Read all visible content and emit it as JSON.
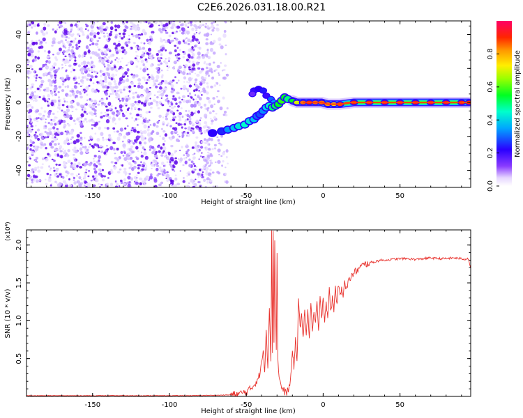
{
  "title": "C2E6.2026.031.18.00.R21",
  "chart_data": [
    {
      "type": "heatmap",
      "xlabel": "Height of straight line (km)",
      "ylabel": "Frequency (Hz)",
      "xlim": [
        -193,
        96
      ],
      "ylim": [
        -50,
        48
      ],
      "xticks": [
        -150,
        -100,
        -50,
        0,
        50
      ],
      "yticks": [
        -40,
        -20,
        0,
        20,
        40
      ],
      "colorbar": {
        "label": "Normalized spectral amplitude",
        "range": [
          0,
          1
        ],
        "ticks": [
          "0.0",
          "0.2",
          "0.4",
          "0.6",
          "0.8"
        ]
      },
      "noise_region": {
        "x": [
          -193,
          -62
        ],
        "y": [
          -50,
          48
        ]
      },
      "ridge": [
        {
          "x": -72,
          "y": -18,
          "a": 0.22
        },
        {
          "x": -66,
          "y": -17,
          "a": 0.25
        },
        {
          "x": -62,
          "y": -16,
          "a": 0.34
        },
        {
          "x": -58,
          "y": -15,
          "a": 0.38
        },
        {
          "x": -55,
          "y": -14,
          "a": 0.42
        },
        {
          "x": -51,
          "y": -13,
          "a": 0.45
        },
        {
          "x": -48,
          "y": -11,
          "a": 0.42
        },
        {
          "x": -45,
          "y": -10,
          "a": 0.38
        },
        {
          "x": -43,
          "y": -8,
          "a": 0.3
        },
        {
          "x": -41,
          "y": -7,
          "a": 0.28
        },
        {
          "x": -39,
          "y": -5,
          "a": 0.33
        },
        {
          "x": -37,
          "y": -3,
          "a": 0.4
        },
        {
          "x": -35,
          "y": -2,
          "a": 0.45
        },
        {
          "x": -33,
          "y": -3,
          "a": 0.5
        },
        {
          "x": -31,
          "y": -2,
          "a": 0.52
        },
        {
          "x": -29,
          "y": -1,
          "a": 0.55
        },
        {
          "x": -27,
          "y": 1,
          "a": 0.58
        },
        {
          "x": -25,
          "y": 3,
          "a": 0.55
        },
        {
          "x": -23,
          "y": 2,
          "a": 0.5
        },
        {
          "x": -20,
          "y": 1,
          "a": 0.55
        },
        {
          "x": -17,
          "y": 0,
          "a": 0.7
        },
        {
          "x": -13,
          "y": 0,
          "a": 0.85
        },
        {
          "x": -9,
          "y": 0,
          "a": 0.9
        },
        {
          "x": -5,
          "y": 0,
          "a": 0.85
        },
        {
          "x": -1,
          "y": 0,
          "a": 0.85
        },
        {
          "x": 3,
          "y": -1,
          "a": 0.82
        },
        {
          "x": 7,
          "y": -1,
          "a": 0.75
        },
        {
          "x": 11,
          "y": -1,
          "a": 0.88
        },
        {
          "x": 20,
          "y": 0,
          "a": 0.9
        },
        {
          "x": 30,
          "y": 0,
          "a": 0.92
        },
        {
          "x": 40,
          "y": 0,
          "a": 0.93
        },
        {
          "x": 50,
          "y": 0,
          "a": 0.93
        },
        {
          "x": 60,
          "y": 0,
          "a": 0.93
        },
        {
          "x": 70,
          "y": 0,
          "a": 0.93
        },
        {
          "x": 80,
          "y": 0,
          "a": 0.93
        },
        {
          "x": 90,
          "y": 0,
          "a": 0.92
        },
        {
          "x": 95,
          "y": 0,
          "a": 0.9
        }
      ],
      "side_lobes": [
        {
          "x": -45,
          "y": 7,
          "a": 0.2
        },
        {
          "x": -42,
          "y": 8,
          "a": 0.22
        },
        {
          "x": -39,
          "y": 7,
          "a": 0.24
        },
        {
          "x": -37,
          "y": 4,
          "a": 0.2
        },
        {
          "x": -34,
          "y": 2,
          "a": 0.3
        },
        {
          "x": -32,
          "y": 0,
          "a": 0.35
        },
        {
          "x": -46,
          "y": 5,
          "a": 0.15
        }
      ]
    },
    {
      "type": "line",
      "xlabel": "Height of straight line (km)",
      "ylabel": "SNR (10 * v/v)",
      "yunit": "(x10⁴)",
      "xlim": [
        -193,
        96
      ],
      "ylim": [
        0,
        2.2
      ],
      "xticks": [
        -150,
        -100,
        -50,
        0,
        50
      ],
      "yticks": [
        0.5,
        1.0,
        1.5,
        2.0
      ],
      "series": [
        {
          "color": "#e8312c",
          "x": [
            -193,
            -90,
            -70,
            -60,
            -55,
            -50,
            -47,
            -44,
            -41,
            -39,
            -38,
            -37,
            -36,
            -35,
            -34,
            -33.5,
            -33,
            -32.5,
            -32,
            -31.5,
            -31,
            -30.5,
            -30,
            -29.5,
            -29,
            -28,
            -27,
            -26,
            -25,
            -24,
            -23,
            -22,
            -21,
            -20,
            -19,
            -18,
            -17,
            -16,
            -15,
            -14,
            -13,
            -12,
            -11,
            -10,
            -9,
            -8,
            -7,
            -6,
            -5,
            -4,
            -3,
            -2,
            -1,
            0,
            1,
            2,
            3,
            4,
            5,
            6,
            7,
            8,
            9,
            10,
            11,
            12,
            13,
            14,
            15,
            17,
            19,
            21,
            23,
            25,
            28,
            31,
            34,
            37,
            40,
            45,
            50,
            55,
            60,
            65,
            70,
            75,
            80,
            85,
            90,
            92,
            94,
            95,
            96
          ],
          "y": [
            0.01,
            0.01,
            0.015,
            0.02,
            0.03,
            0.06,
            0.1,
            0.18,
            0.3,
            0.6,
            0.35,
            0.9,
            0.4,
            1.2,
            0.5,
            2.15,
            0.6,
            2.2,
            0.7,
            2.1,
            1.2,
            0.6,
            1.9,
            0.5,
            0.35,
            0.18,
            0.12,
            0.08,
            0.06,
            0.05,
            0.08,
            0.12,
            0.25,
            0.6,
            0.4,
            0.75,
            0.45,
            1.3,
            0.9,
            1.05,
            0.75,
            1.15,
            0.85,
            1.1,
            0.8,
            1.2,
            0.9,
            1.1,
            0.95,
            1.25,
            0.85,
            1.3,
            1.0,
            1.35,
            1.0,
            1.25,
            1.05,
            1.4,
            1.1,
            1.3,
            1.15,
            1.45,
            1.2,
            1.5,
            1.3,
            1.45,
            1.35,
            1.55,
            1.4,
            1.55,
            1.6,
            1.65,
            1.68,
            1.72,
            1.75,
            1.77,
            1.78,
            1.8,
            1.8,
            1.81,
            1.82,
            1.82,
            1.81,
            1.82,
            1.83,
            1.82,
            1.82,
            1.83,
            1.82,
            1.81,
            1.83,
            1.78,
            1.7
          ]
        }
      ]
    }
  ]
}
